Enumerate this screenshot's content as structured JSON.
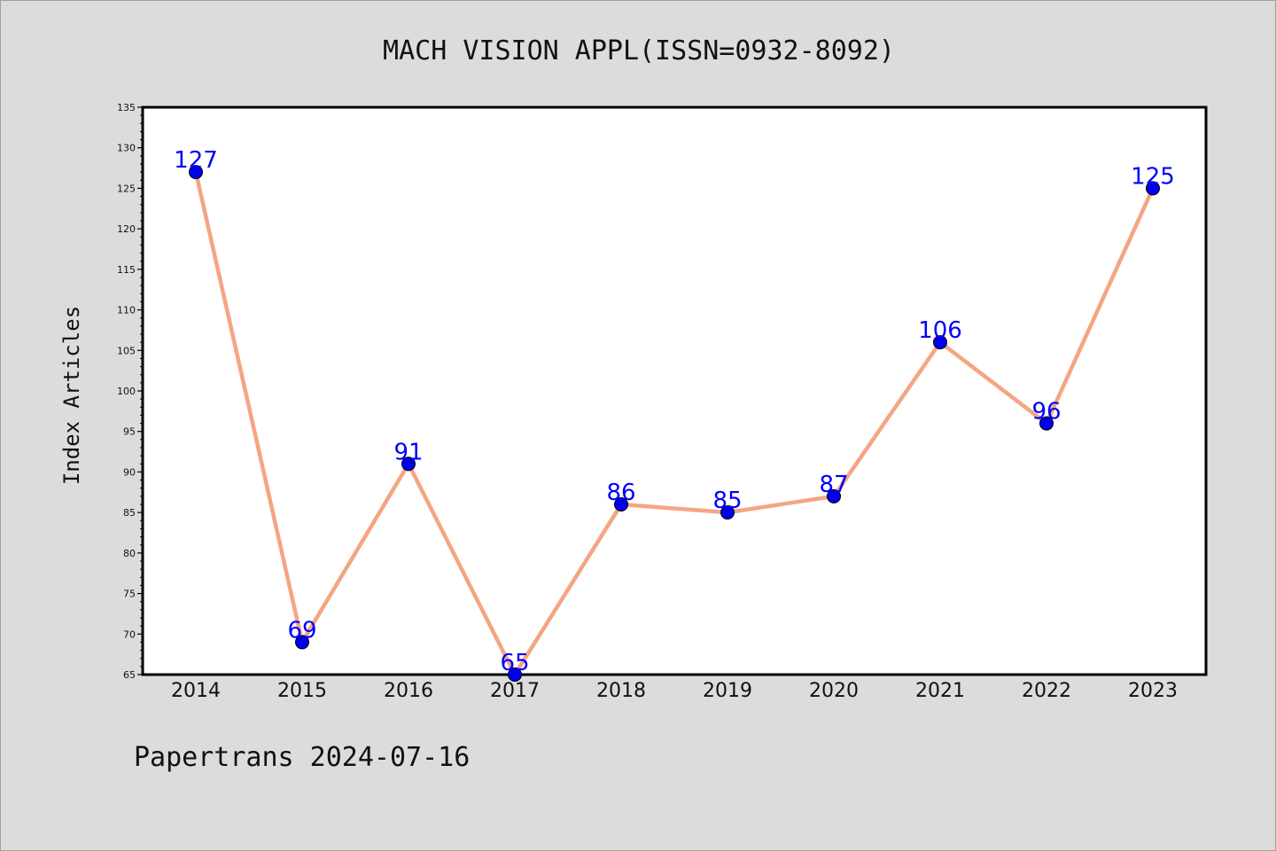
{
  "chart_data": {
    "type": "line",
    "title": "MACH VISION APPL(ISSN=0932-8092)",
    "xlabel": "",
    "ylabel": "Index Articles",
    "categories": [
      "2014",
      "2015",
      "2016",
      "2017",
      "2018",
      "2019",
      "2020",
      "2021",
      "2022",
      "2023"
    ],
    "values": [
      127,
      69,
      91,
      65,
      86,
      85,
      87,
      106,
      96,
      125
    ],
    "ylim": [
      65,
      135
    ],
    "ytick_step": 5,
    "grid": false,
    "line_color": "#f4a582",
    "marker_color": "#0000ee",
    "label_color": "#0000ff"
  },
  "footer": {
    "text": "Papertrans 2024-07-16"
  }
}
